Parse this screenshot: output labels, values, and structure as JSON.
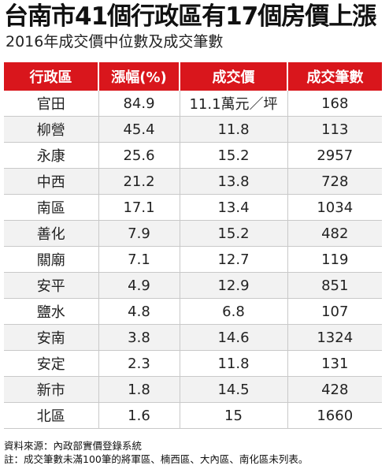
{
  "header": {
    "title": "台南市41個行政區有17個房價上漲",
    "subtitle": "2016年成交價中位數及成交筆數"
  },
  "table": {
    "columns": [
      "行政區",
      "漲幅(%)",
      "成交價",
      "成交筆數"
    ],
    "rows": [
      [
        "官田",
        "84.9",
        "11.1萬元／坪",
        "168"
      ],
      [
        "柳營",
        "45.4",
        "11.8",
        "113"
      ],
      [
        "永康",
        "25.6",
        "15.2",
        "2957"
      ],
      [
        "中西",
        "21.2",
        "13.8",
        "728"
      ],
      [
        "南區",
        "17.1",
        "13.4",
        "1034"
      ],
      [
        "善化",
        "7.9",
        "15.2",
        "482"
      ],
      [
        "關廟",
        "7.1",
        "12.7",
        "119"
      ],
      [
        "安平",
        "4.9",
        "12.9",
        "851"
      ],
      [
        "鹽水",
        "4.8",
        "6.8",
        "107"
      ],
      [
        "安南",
        "3.8",
        "14.6",
        "1324"
      ],
      [
        "安定",
        "2.3",
        "11.8",
        "131"
      ],
      [
        "新市",
        "1.8",
        "14.5",
        "428"
      ],
      [
        "北區",
        "1.6",
        "15",
        "1660"
      ]
    ]
  },
  "footnotes": {
    "source": "資料來源：內政部實價登錄系統",
    "note": "註：成交筆數未滿100筆的將軍區、楠西區、大內區、南化區未列表。"
  },
  "colors": {
    "header_background": "#d9161c",
    "header_text": "#ffffff",
    "alternate_row": "#f2f2f2"
  }
}
